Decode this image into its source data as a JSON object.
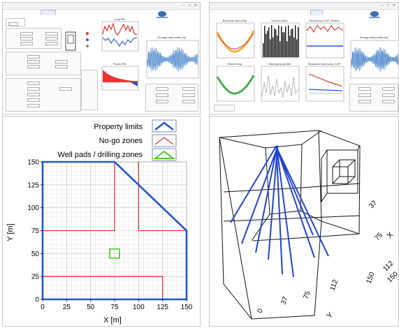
{
  "window": {
    "control_glyphs": [
      "–",
      "□",
      "✕"
    ]
  },
  "panel1": {
    "chart_titles": [
      "Loop RB",
      "Power RB"
    ],
    "right_chart_title": "Energy load profile (m)"
  },
  "panel2": {
    "chart_titles": [
      "Borehole fluid temp",
      "Ground temp",
      "Heat pump COP (Sheet)",
      "Sheet temp",
      "Heat pump profile",
      "Seasonal heat pump COP"
    ],
    "right_chart_title": "Energy load profile (m)"
  },
  "map": {
    "legend": [
      {
        "label": "Property limits",
        "color": "#2255cc"
      },
      {
        "label": "No-go zones",
        "color": "#e03030"
      },
      {
        "label": "Well pads / drilling zones",
        "color": "#44cc22"
      }
    ],
    "xlabel": "X [m]",
    "ylabel": "Y [m]",
    "x_ticks": [
      "0",
      "25",
      "50",
      "75",
      "100",
      "125",
      "150"
    ],
    "y_ticks": [
      "0",
      "25",
      "50",
      "75",
      "100",
      "125",
      "150"
    ],
    "property_color": "#2255cc",
    "nogo_color": "#e03030",
    "wellpad_color": "#44cc22"
  },
  "view3d": {
    "axis_x_label": "X",
    "axis_y_label": "Y",
    "x_ticks": [
      "37",
      "75",
      "112",
      "150"
    ],
    "y_ticks": [
      "0",
      "37",
      "75",
      "112",
      "150"
    ],
    "borehole_color": "#2244cc"
  }
}
